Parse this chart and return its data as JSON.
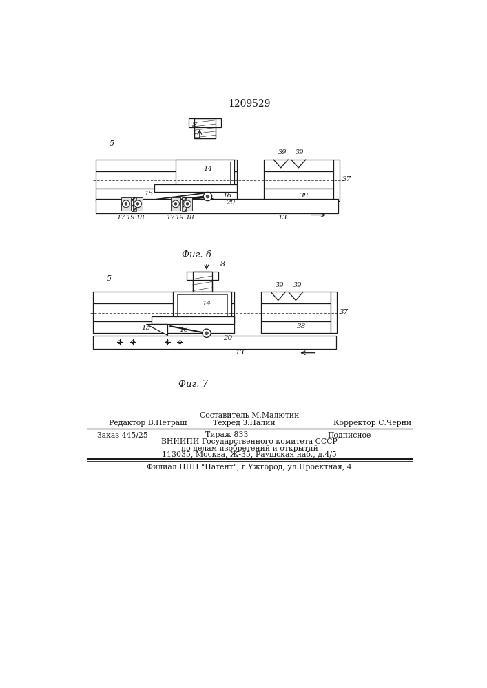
{
  "title": "1209529",
  "fig6_label": "Фиг. 6",
  "fig7_label": "Фиг. 7",
  "bg_color": "#ffffff",
  "line_color": "#1a1a1a",
  "footer": {
    "sostavitel": "Составитель М.Малютин",
    "redaktor": "Редактор В.Петраш",
    "tehred": "Техред З.Палий",
    "korrektor": "Корректор С.Черни",
    "zakaz": "Заказ 445/25",
    "tirazh": "Тираж 833",
    "podpisnoe": "Подписное",
    "vniiipi": "ВНИИПИ Государственного комитета СССР",
    "po_delam": "по делам изобретений и открытий",
    "address": "113035, Москва, Ж-35, Раушская наб., д.4/5",
    "filial": "Филиал ППП \"Патент\", г.Ужгород, ул.Проектная, 4"
  }
}
